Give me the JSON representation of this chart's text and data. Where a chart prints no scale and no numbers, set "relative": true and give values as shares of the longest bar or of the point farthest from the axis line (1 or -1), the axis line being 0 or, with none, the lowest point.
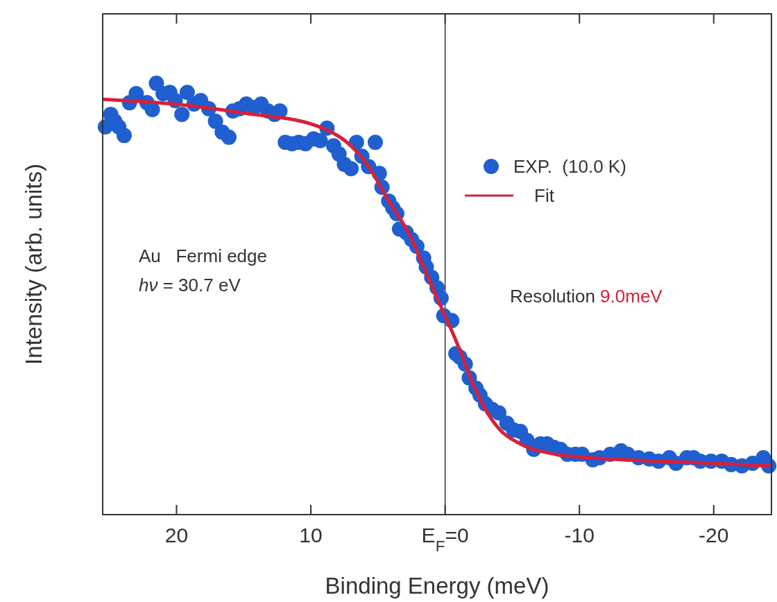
{
  "chart_data": {
    "type": "scatter",
    "xlabel": "Binding Energy (meV)",
    "ylabel": "Intensity (arb. units)",
    "relative": true,
    "xlim": [
      25.5,
      -24.3
    ],
    "xticks": [
      20,
      10,
      {
        "value": 0,
        "label": "E$_{F}$=0"
      },
      -10,
      -20
    ],
    "legend": "top right",
    "grid": false,
    "ref_lines": [
      {
        "axis": "x",
        "value": 0,
        "color": "#333333"
      }
    ],
    "annotations": [
      "Au   Fermi edge",
      "hν = 30.7 eV",
      "Resolution",
      "9.0meV"
    ],
    "series": [
      {
        "name": "EXP.  (10.0 K)",
        "marker": "circle",
        "color": "#1f5fd0",
        "x": [
          25.3,
          24.9,
          24.6,
          24.3,
          23.9,
          23.5,
          23.0,
          22.2,
          21.8,
          21.5,
          21.0,
          20.5,
          20.1,
          19.6,
          19.2,
          18.7,
          18.2,
          17.6,
          17.1,
          16.6,
          16.1,
          15.8,
          15.3,
          14.8,
          14.2,
          13.7,
          13.2,
          12.7,
          12.3,
          11.9,
          11.4,
          10.9,
          10.4,
          9.8,
          9.3,
          8.8,
          8.3,
          7.9,
          7.5,
          7.0,
          6.6,
          6.2,
          5.7,
          5.2,
          4.9,
          4.7,
          4.2,
          3.9,
          3.6,
          3.4,
          2.9,
          2.5,
          2.1,
          1.6,
          1.4,
          1.0,
          0.6,
          0.3,
          0.1,
          -0.5,
          -0.8,
          -1.1,
          -1.5,
          -1.8,
          -2.3,
          -2.6,
          -3.0,
          -3.5,
          -4.0,
          -4.6,
          -5.1,
          -5.6,
          -6.1,
          -6.6,
          -7.1,
          -7.6,
          -8.1,
          -8.6,
          -9.1,
          -9.7,
          -10.2,
          -11.0,
          -11.5,
          -12.3,
          -13.1,
          -13.6,
          -14.4,
          -15.2,
          -15.9,
          -16.7,
          -17.2,
          -18.0,
          -18.5,
          -19.0,
          -19.8,
          -20.6,
          -21.3,
          -22.1,
          -22.9,
          -23.7,
          -24.1
        ],
        "values": [
          0.899,
          0.928,
          0.912,
          0.899,
          0.879,
          0.955,
          0.976,
          0.955,
          0.939,
          1.0,
          0.976,
          0.979,
          0.96,
          0.928,
          0.979,
          0.952,
          0.96,
          0.941,
          0.912,
          0.887,
          0.875,
          0.936,
          0.941,
          0.952,
          0.944,
          0.952,
          0.936,
          0.928,
          0.936,
          0.863,
          0.86,
          0.863,
          0.86,
          0.871,
          0.867,
          0.896,
          0.855,
          0.836,
          0.812,
          0.802,
          0.863,
          0.831,
          0.807,
          0.863,
          0.791,
          0.759,
          0.727,
          0.711,
          0.698,
          0.662,
          0.654,
          0.638,
          0.622,
          0.595,
          0.574,
          0.55,
          0.526,
          0.502,
          0.461,
          0.45,
          0.373,
          0.365,
          0.349,
          0.317,
          0.293,
          0.277,
          0.257,
          0.244,
          0.236,
          0.212,
          0.196,
          0.193,
          0.172,
          0.151,
          0.164,
          0.164,
          0.156,
          0.151,
          0.14,
          0.14,
          0.14,
          0.127,
          0.132,
          0.14,
          0.148,
          0.14,
          0.132,
          0.129,
          0.124,
          0.132,
          0.119,
          0.132,
          0.132,
          0.124,
          0.124,
          0.124,
          0.116,
          0.113,
          0.119,
          0.132,
          0.113
        ]
      },
      {
        "name": "Fit",
        "type": "line",
        "color": "#d8203a",
        "line_style": "solid",
        "x": [
          25.4,
          20.2,
          15.0,
          9.8,
          8.3,
          7.3,
          5.7,
          4.2,
          2.6,
          1.6,
          0.6,
          0.0,
          -1.0,
          -2.0,
          -3.0,
          -4.1,
          -5.6,
          -8.2,
          -10.8,
          -13.4,
          -18.5,
          -24.2
        ],
        "values": [
          0.963,
          0.952,
          0.931,
          0.904,
          0.884,
          0.863,
          0.807,
          0.727,
          0.646,
          0.574,
          0.502,
          0.461,
          0.389,
          0.309,
          0.244,
          0.196,
          0.164,
          0.14,
          0.132,
          0.127,
          0.121,
          0.113
        ]
      }
    ]
  }
}
